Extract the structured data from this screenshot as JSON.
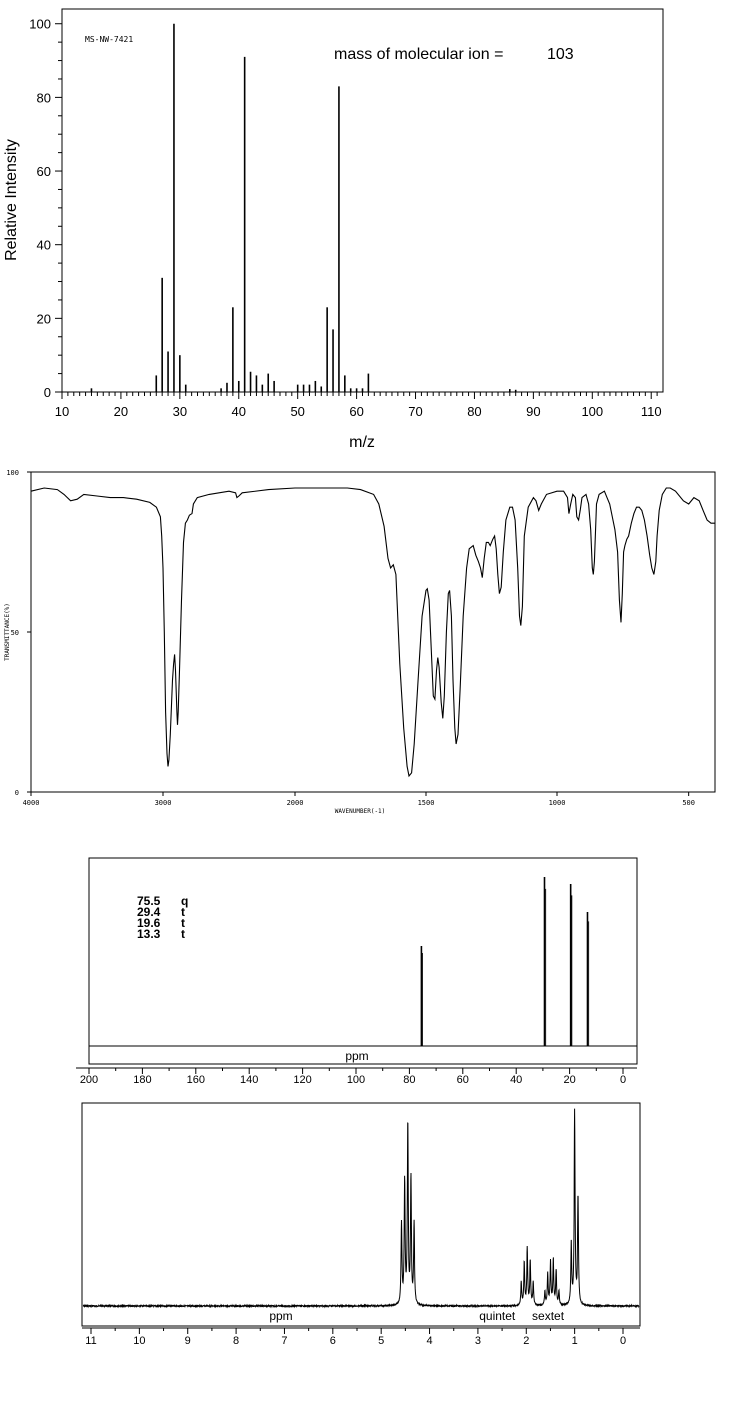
{
  "chart_data": [
    {
      "type": "bar",
      "panel": "mass-spectrum",
      "code": "MS-NW-7421",
      "annotation_label": "mass of molecular ion =",
      "annotation_value": "103",
      "xlabel": "m/z",
      "ylabel": "Relative Intensity",
      "xlim": [
        10,
        112
      ],
      "ylim": [
        0,
        104
      ],
      "xticks": [
        10,
        20,
        30,
        40,
        50,
        60,
        70,
        80,
        90,
        100,
        110
      ],
      "yticks": [
        0,
        20,
        40,
        60,
        80,
        100
      ],
      "peaks": [
        {
          "x": 15,
          "y": 1
        },
        {
          "x": 26,
          "y": 4.5
        },
        {
          "x": 27,
          "y": 31
        },
        {
          "x": 28,
          "y": 11
        },
        {
          "x": 29,
          "y": 100
        },
        {
          "x": 30,
          "y": 10
        },
        {
          "x": 31,
          "y": 2
        },
        {
          "x": 37,
          "y": 1
        },
        {
          "x": 38,
          "y": 2.5
        },
        {
          "x": 39,
          "y": 23
        },
        {
          "x": 40,
          "y": 3
        },
        {
          "x": 41,
          "y": 91
        },
        {
          "x": 42,
          "y": 5.5
        },
        {
          "x": 43,
          "y": 4.5
        },
        {
          "x": 44,
          "y": 2
        },
        {
          "x": 45,
          "y": 5
        },
        {
          "x": 46,
          "y": 3
        },
        {
          "x": 50,
          "y": 2
        },
        {
          "x": 51,
          "y": 2
        },
        {
          "x": 52,
          "y": 2
        },
        {
          "x": 53,
          "y": 3
        },
        {
          "x": 54,
          "y": 1.5
        },
        {
          "x": 55,
          "y": 23
        },
        {
          "x": 56,
          "y": 17
        },
        {
          "x": 57,
          "y": 83
        },
        {
          "x": 58,
          "y": 4.5
        },
        {
          "x": 59,
          "y": 1
        },
        {
          "x": 60,
          "y": 1
        },
        {
          "x": 61,
          "y": 1
        },
        {
          "x": 62,
          "y": 5
        },
        {
          "x": 86,
          "y": 0.8
        },
        {
          "x": 87,
          "y": 0.6
        }
      ]
    },
    {
      "type": "line",
      "panel": "ir-spectrum",
      "xlabel": "WAVENUMBER(-1)",
      "ylabel": "TRANSMITTANCE(%)",
      "xlim": [
        4000,
        400
      ],
      "ylim": [
        0,
        100
      ],
      "xticks": [
        4000,
        3000,
        2000,
        1500,
        1000,
        500
      ],
      "yticks": [
        0,
        50,
        100
      ],
      "points": [
        [
          4000,
          94
        ],
        [
          3900,
          95
        ],
        [
          3800,
          94.5
        ],
        [
          3750,
          93
        ],
        [
          3700,
          91
        ],
        [
          3650,
          91.5
        ],
        [
          3600,
          93
        ],
        [
          3500,
          92.5
        ],
        [
          3400,
          92
        ],
        [
          3300,
          92
        ],
        [
          3200,
          91.5
        ],
        [
          3100,
          90.5
        ],
        [
          3050,
          89
        ],
        [
          3020,
          86
        ],
        [
          3010,
          80
        ],
        [
          3000,
          70
        ],
        [
          2990,
          50
        ],
        [
          2980,
          25
        ],
        [
          2970,
          12
        ],
        [
          2962,
          8
        ],
        [
          2955,
          10
        ],
        [
          2945,
          18
        ],
        [
          2935,
          28
        ],
        [
          2928,
          35
        ],
        [
          2920,
          40
        ],
        [
          2912,
          43
        ],
        [
          2905,
          38
        ],
        [
          2895,
          25
        ],
        [
          2890,
          21
        ],
        [
          2885,
          25
        ],
        [
          2875,
          38
        ],
        [
          2860,
          60
        ],
        [
          2845,
          78
        ],
        [
          2830,
          84
        ],
        [
          2815,
          85
        ],
        [
          2800,
          86.5
        ],
        [
          2780,
          87
        ],
        [
          2770,
          90
        ],
        [
          2740,
          92
        ],
        [
          2650,
          93
        ],
        [
          2500,
          94
        ],
        [
          2450,
          93.5
        ],
        [
          2440,
          92
        ],
        [
          2425,
          92.5
        ],
        [
          2400,
          93.5
        ],
        [
          2200,
          94.5
        ],
        [
          2000,
          95
        ],
        [
          1800,
          95
        ],
        [
          1750,
          94.5
        ],
        [
          1700,
          93
        ],
        [
          1680,
          90
        ],
        [
          1660,
          83
        ],
        [
          1645,
          73
        ],
        [
          1635,
          70
        ],
        [
          1625,
          71
        ],
        [
          1615,
          68
        ],
        [
          1600,
          40
        ],
        [
          1585,
          20
        ],
        [
          1572,
          8
        ],
        [
          1565,
          5
        ],
        [
          1555,
          6
        ],
        [
          1545,
          15
        ],
        [
          1530,
          35
        ],
        [
          1515,
          55
        ],
        [
          1500,
          63
        ],
        [
          1495,
          63.5
        ],
        [
          1488,
          60
        ],
        [
          1480,
          45
        ],
        [
          1472,
          30
        ],
        [
          1466,
          29
        ],
        [
          1460,
          38
        ],
        [
          1455,
          42
        ],
        [
          1450,
          39
        ],
        [
          1442,
          28
        ],
        [
          1436,
          23
        ],
        [
          1430,
          30
        ],
        [
          1422,
          50
        ],
        [
          1415,
          62
        ],
        [
          1410,
          63
        ],
        [
          1403,
          55
        ],
        [
          1397,
          35
        ],
        [
          1390,
          20
        ],
        [
          1385,
          15
        ],
        [
          1378,
          18
        ],
        [
          1370,
          32
        ],
        [
          1358,
          55
        ],
        [
          1345,
          70
        ],
        [
          1335,
          76
        ],
        [
          1320,
          77
        ],
        [
          1310,
          74
        ],
        [
          1300,
          72
        ],
        [
          1292,
          70
        ],
        [
          1285,
          67
        ],
        [
          1278,
          73
        ],
        [
          1270,
          78
        ],
        [
          1262,
          78
        ],
        [
          1255,
          77
        ],
        [
          1245,
          79
        ],
        [
          1238,
          80
        ],
        [
          1232,
          76
        ],
        [
          1226,
          68
        ],
        [
          1220,
          62
        ],
        [
          1213,
          64
        ],
        [
          1205,
          75
        ],
        [
          1195,
          85
        ],
        [
          1180,
          89
        ],
        [
          1170,
          89
        ],
        [
          1160,
          85
        ],
        [
          1150,
          70
        ],
        [
          1143,
          55
        ],
        [
          1138,
          52
        ],
        [
          1132,
          58
        ],
        [
          1125,
          80
        ],
        [
          1110,
          89
        ],
        [
          1090,
          92
        ],
        [
          1080,
          91
        ],
        [
          1070,
          88
        ],
        [
          1060,
          90
        ],
        [
          1040,
          93
        ],
        [
          1000,
          94
        ],
        [
          975,
          94
        ],
        [
          960,
          92
        ],
        [
          955,
          87
        ],
        [
          948,
          90
        ],
        [
          940,
          93
        ],
        [
          930,
          92
        ],
        [
          925,
          86
        ],
        [
          918,
          85
        ],
        [
          912,
          88
        ],
        [
          905,
          92
        ],
        [
          890,
          93
        ],
        [
          880,
          90
        ],
        [
          872,
          82
        ],
        [
          866,
          70
        ],
        [
          862,
          68
        ],
        [
          858,
          72
        ],
        [
          850,
          90
        ],
        [
          840,
          93
        ],
        [
          820,
          94
        ],
        [
          810,
          92
        ],
        [
          800,
          90
        ],
        [
          790,
          86
        ],
        [
          780,
          82
        ],
        [
          770,
          75
        ],
        [
          763,
          60
        ],
        [
          757,
          53
        ],
        [
          752,
          62
        ],
        [
          747,
          75
        ],
        [
          742,
          77
        ],
        [
          735,
          79
        ],
        [
          728,
          80
        ],
        [
          718,
          84
        ],
        [
          708,
          87
        ],
        [
          698,
          89
        ],
        [
          688,
          89
        ],
        [
          678,
          88
        ],
        [
          668,
          85
        ],
        [
          658,
          80
        ],
        [
          648,
          74
        ],
        [
          640,
          70
        ],
        [
          632,
          68
        ],
        [
          625,
          72
        ],
        [
          620,
          80
        ],
        [
          612,
          88
        ],
        [
          600,
          93
        ],
        [
          585,
          95
        ],
        [
          570,
          95
        ],
        [
          550,
          94
        ],
        [
          520,
          91
        ],
        [
          500,
          90
        ],
        [
          480,
          92
        ],
        [
          460,
          91
        ],
        [
          445,
          88
        ],
        [
          430,
          85
        ],
        [
          415,
          84
        ],
        [
          400,
          84
        ]
      ]
    },
    {
      "type": "bar",
      "panel": "c13-nmr",
      "xlabel": "ppm",
      "xlim": [
        200,
        -5
      ],
      "xticks": [
        200,
        180,
        160,
        140,
        120,
        100,
        80,
        60,
        40,
        20,
        0
      ],
      "shift_table": [
        {
          "shift": "75.5",
          "mult": "q"
        },
        {
          "shift": "29.4",
          "mult": "t"
        },
        {
          "shift": "19.6",
          "mult": "t"
        },
        {
          "shift": "13.3",
          "mult": "t"
        }
      ],
      "peaks": [
        {
          "x": 75.5,
          "y": 100,
          "label": "75.5"
        },
        {
          "x": 29.4,
          "y": 169,
          "label": "29.4"
        },
        {
          "x": 19.6,
          "y": 162,
          "label": "19.6"
        },
        {
          "x": 13.3,
          "y": 134,
          "label": "13.3"
        }
      ]
    },
    {
      "type": "line",
      "panel": "h1-nmr",
      "xlabel": "ppm",
      "xlim": [
        11.1,
        -0.35
      ],
      "xticks": [
        11,
        10,
        9,
        8,
        7,
        6,
        5,
        4,
        3,
        2,
        1,
        0
      ],
      "annotations": [
        {
          "text": "quintet",
          "x": 2.6
        },
        {
          "text": "sextet",
          "x": 1.55
        }
      ],
      "multiplets": [
        {
          "center": 4.45,
          "j": 0.065,
          "lines": [
            0.45,
            0.7,
            1.0,
            0.68,
            0.45
          ],
          "height": 180
        },
        {
          "center": 1.98,
          "j": 0.062,
          "lines": [
            0.4,
            0.78,
            1.0,
            0.75,
            0.4
          ],
          "height": 57
        },
        {
          "center": 1.47,
          "j": 0.058,
          "lines": [
            0.3,
            0.75,
            1.0,
            0.95,
            0.7,
            0.3
          ],
          "height": 46
        },
        {
          "center": 1.0,
          "j": 0.07,
          "lines": [
            0.56,
            1.0,
            0.32
          ],
          "height": 193
        }
      ]
    }
  ]
}
